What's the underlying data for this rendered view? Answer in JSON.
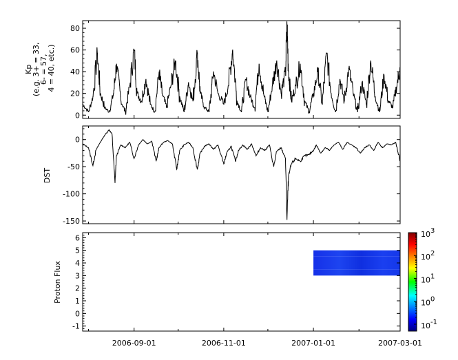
{
  "chart_data": [
    {
      "type": "line",
      "panel": "kp",
      "ylabel_lines": [
        "Kp",
        "(e.g. 3+ = 33,",
        "6- = 57,",
        "4 = 40, etc.)"
      ],
      "ylim": [
        -3,
        87
      ],
      "yticks": [
        0,
        20,
        40,
        60,
        80
      ],
      "x_range": [
        "2006-07-28",
        "2007-03-01"
      ],
      "series": [
        {
          "color": "#000000",
          "points": [
            [
              "2006-07-28",
              10
            ],
            [
              "2006-08-01",
              3
            ],
            [
              "2006-08-04",
              17
            ],
            [
              "2006-08-07",
              57
            ],
            [
              "2006-08-09",
              20
            ],
            [
              "2006-08-12",
              7
            ],
            [
              "2006-08-15",
              3
            ],
            [
              "2006-08-18",
              20
            ],
            [
              "2006-08-20",
              47
            ],
            [
              "2006-08-23",
              13
            ],
            [
              "2006-08-26",
              3
            ],
            [
              "2006-08-29",
              27
            ],
            [
              "2006-09-01",
              60
            ],
            [
              "2006-09-03",
              20
            ],
            [
              "2006-09-06",
              13
            ],
            [
              "2006-09-09",
              33
            ],
            [
              "2006-09-12",
              10
            ],
            [
              "2006-09-15",
              3
            ],
            [
              "2006-09-18",
              40
            ],
            [
              "2006-09-20",
              20
            ],
            [
              "2006-09-23",
              7
            ],
            [
              "2006-09-26",
              27
            ],
            [
              "2006-09-29",
              50
            ],
            [
              "2006-10-02",
              17
            ],
            [
              "2006-10-05",
              3
            ],
            [
              "2006-10-08",
              30
            ],
            [
              "2006-10-11",
              13
            ],
            [
              "2006-10-14",
              57
            ],
            [
              "2006-10-16",
              20
            ],
            [
              "2006-10-19",
              7
            ],
            [
              "2006-10-22",
              3
            ],
            [
              "2006-10-25",
              40
            ],
            [
              "2006-10-28",
              20
            ],
            [
              "2006-11-01",
              10
            ],
            [
              "2006-11-04",
              27
            ],
            [
              "2006-11-07",
              60
            ],
            [
              "2006-11-10",
              13
            ],
            [
              "2006-11-13",
              3
            ],
            [
              "2006-11-16",
              33
            ],
            [
              "2006-11-19",
              17
            ],
            [
              "2006-11-22",
              7
            ],
            [
              "2006-11-25",
              47
            ],
            [
              "2006-11-28",
              20
            ],
            [
              "2006-12-01",
              3
            ],
            [
              "2006-12-04",
              27
            ],
            [
              "2006-12-07",
              50
            ],
            [
              "2006-12-10",
              20
            ],
            [
              "2006-12-13",
              40
            ],
            [
              "2006-12-14",
              83
            ],
            [
              "2006-12-15",
              40
            ],
            [
              "2006-12-17",
              13
            ],
            [
              "2006-12-20",
              27
            ],
            [
              "2006-12-23",
              47
            ],
            [
              "2006-12-26",
              13
            ],
            [
              "2006-12-29",
              3
            ],
            [
              "2007-01-01",
              20
            ],
            [
              "2007-01-04",
              40
            ],
            [
              "2007-01-07",
              10
            ],
            [
              "2007-01-10",
              57
            ],
            [
              "2007-01-13",
              20
            ],
            [
              "2007-01-16",
              3
            ],
            [
              "2007-01-19",
              33
            ],
            [
              "2007-01-22",
              13
            ],
            [
              "2007-01-25",
              43
            ],
            [
              "2007-01-28",
              20
            ],
            [
              "2007-01-31",
              3
            ],
            [
              "2007-02-03",
              30
            ],
            [
              "2007-02-06",
              10
            ],
            [
              "2007-02-09",
              50
            ],
            [
              "2007-02-12",
              17
            ],
            [
              "2007-02-15",
              3
            ],
            [
              "2007-02-18",
              37
            ],
            [
              "2007-02-21",
              13
            ],
            [
              "2007-02-24",
              7
            ],
            [
              "2007-02-27",
              30
            ],
            [
              "2007-03-01",
              43
            ]
          ]
        }
      ]
    },
    {
      "type": "line",
      "panel": "dst",
      "ylabel_lines": [
        "DST"
      ],
      "ylim": [
        -155,
        25
      ],
      "yticks": [
        0,
        -50,
        -100,
        -150
      ],
      "x_range": [
        "2006-07-28",
        "2007-03-01"
      ],
      "series": [
        {
          "color": "#000000",
          "points": [
            [
              "2006-07-28",
              -8
            ],
            [
              "2006-08-01",
              -15
            ],
            [
              "2006-08-04",
              -48
            ],
            [
              "2006-08-06",
              -20
            ],
            [
              "2006-08-09",
              -5
            ],
            [
              "2006-08-12",
              8
            ],
            [
              "2006-08-15",
              18
            ],
            [
              "2006-08-17",
              10
            ],
            [
              "2006-08-19",
              -80
            ],
            [
              "2006-08-20",
              -30
            ],
            [
              "2006-08-23",
              -10
            ],
            [
              "2006-08-26",
              -15
            ],
            [
              "2006-08-29",
              -5
            ],
            [
              "2006-09-01",
              -35
            ],
            [
              "2006-09-04",
              -10
            ],
            [
              "2006-09-07",
              0
            ],
            [
              "2006-09-10",
              -8
            ],
            [
              "2006-09-13",
              -3
            ],
            [
              "2006-09-16",
              -40
            ],
            [
              "2006-09-18",
              -15
            ],
            [
              "2006-09-21",
              -5
            ],
            [
              "2006-09-24",
              -2
            ],
            [
              "2006-09-27",
              -8
            ],
            [
              "2006-09-30",
              -55
            ],
            [
              "2006-10-02",
              -20
            ],
            [
              "2006-10-05",
              -10
            ],
            [
              "2006-10-08",
              -5
            ],
            [
              "2006-10-11",
              -15
            ],
            [
              "2006-10-14",
              -55
            ],
            [
              "2006-10-16",
              -25
            ],
            [
              "2006-10-19",
              -12
            ],
            [
              "2006-10-22",
              -8
            ],
            [
              "2006-10-25",
              -18
            ],
            [
              "2006-10-28",
              -10
            ],
            [
              "2006-11-01",
              -45
            ],
            [
              "2006-11-03",
              -25
            ],
            [
              "2006-11-06",
              -12
            ],
            [
              "2006-11-09",
              -40
            ],
            [
              "2006-11-11",
              -20
            ],
            [
              "2006-11-14",
              -10
            ],
            [
              "2006-11-17",
              -18
            ],
            [
              "2006-11-20",
              -8
            ],
            [
              "2006-11-23",
              -30
            ],
            [
              "2006-11-26",
              -15
            ],
            [
              "2006-11-29",
              -20
            ],
            [
              "2006-12-02",
              -10
            ],
            [
              "2006-12-05",
              -50
            ],
            [
              "2006-12-07",
              -22
            ],
            [
              "2006-12-10",
              -15
            ],
            [
              "2006-12-13",
              -35
            ],
            [
              "2006-12-14",
              -148
            ],
            [
              "2006-12-15",
              -70
            ],
            [
              "2006-12-17",
              -45
            ],
            [
              "2006-12-20",
              -35
            ],
            [
              "2006-12-23",
              -40
            ],
            [
              "2006-12-26",
              -30
            ],
            [
              "2006-12-29",
              -28
            ],
            [
              "2007-01-01",
              -20
            ],
            [
              "2007-01-03",
              -10
            ],
            [
              "2007-01-06",
              -25
            ],
            [
              "2007-01-09",
              -15
            ],
            [
              "2007-01-12",
              -20
            ],
            [
              "2007-01-15",
              -10
            ],
            [
              "2007-01-18",
              -5
            ],
            [
              "2007-01-21",
              -18
            ],
            [
              "2007-01-24",
              -5
            ],
            [
              "2007-01-27",
              -10
            ],
            [
              "2007-01-30",
              -15
            ],
            [
              "2007-02-02",
              -25
            ],
            [
              "2007-02-05",
              -15
            ],
            [
              "2007-02-08",
              -10
            ],
            [
              "2007-02-11",
              -20
            ],
            [
              "2007-02-14",
              -5
            ],
            [
              "2007-02-17",
              -15
            ],
            [
              "2007-02-20",
              -8
            ],
            [
              "2007-02-23",
              -10
            ],
            [
              "2007-02-26",
              -5
            ],
            [
              "2007-03-01",
              -40
            ]
          ]
        }
      ]
    },
    {
      "type": "heatmap",
      "panel": "proton-flux",
      "ylabel_lines": [
        "Proton Flux"
      ],
      "ylim": [
        -1.4,
        6.4
      ],
      "yticks": [
        6,
        5,
        4,
        3,
        2,
        1,
        0,
        -1
      ],
      "x_range": [
        "2006-07-28",
        "2007-03-01"
      ],
      "xticks": [
        "2006-09-01",
        "2006-11-01",
        "2007-01-01",
        "2007-03-01"
      ],
      "cells": [
        {
          "x0": "2007-01-01",
          "x1": "2007-03-01",
          "y0": 4.5,
          "y1": 5.0,
          "value": 0.3
        },
        {
          "x0": "2007-01-01",
          "x1": "2007-03-01",
          "y0": 4.0,
          "y1": 4.5,
          "value": 0.45
        },
        {
          "x0": "2007-01-01",
          "x1": "2007-03-01",
          "y0": 3.5,
          "y1": 4.0,
          "value": 0.5
        },
        {
          "x0": "2007-01-01",
          "x1": "2007-03-01",
          "y0": 3.0,
          "y1": 3.5,
          "value": 0.55
        }
      ],
      "colorbar": {
        "scale": "log",
        "range": [
          0.05,
          1000
        ],
        "ticks": [
          {
            "value": 0.1,
            "base": "10",
            "exp": "-1"
          },
          {
            "value": 1,
            "base": "10",
            "exp": "0"
          },
          {
            "value": 10,
            "base": "10",
            "exp": "1"
          },
          {
            "value": 100,
            "base": "10",
            "exp": "2"
          },
          {
            "value": 1000,
            "base": "10",
            "exp": "3"
          }
        ],
        "colormap": "jet"
      }
    }
  ]
}
